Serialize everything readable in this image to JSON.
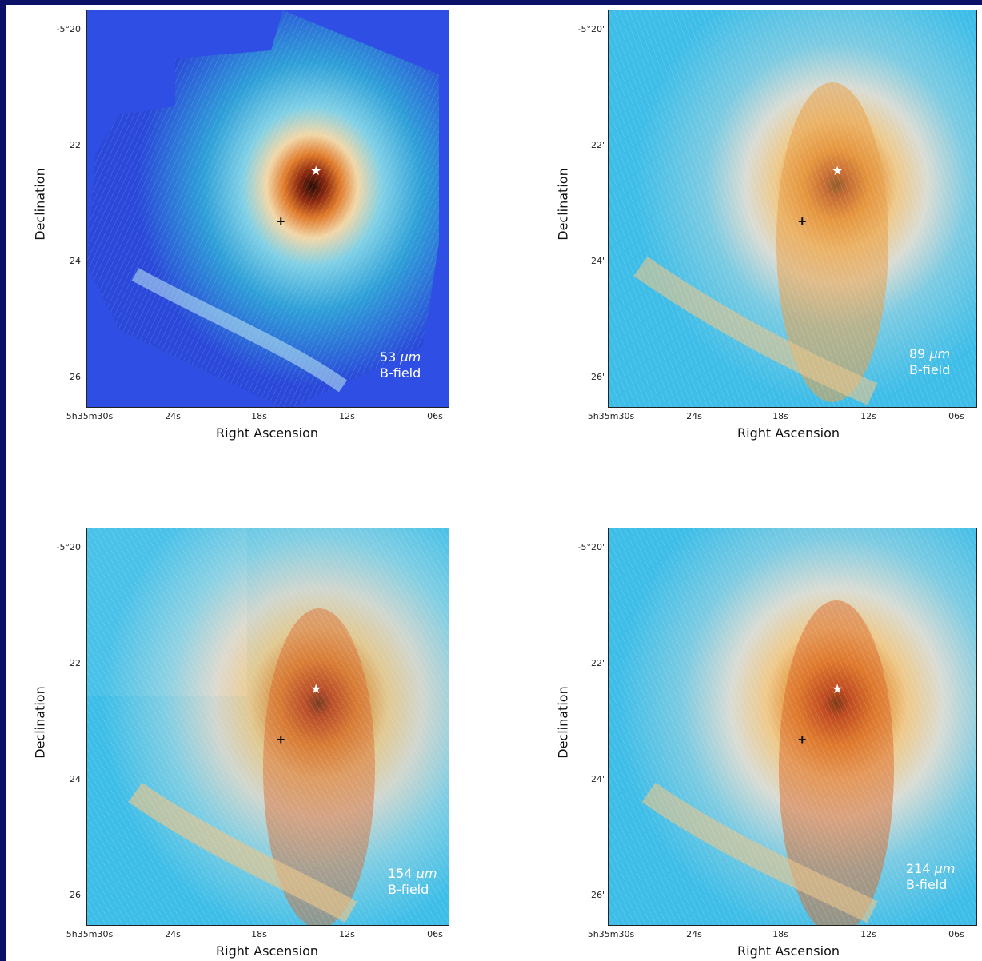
{
  "figure": {
    "panels": [
      {
        "band_value": "53",
        "band_unit": "μm",
        "band_label": "B-field",
        "y_axis_label": "Declination",
        "x_axis_label": "Right Ascension",
        "y_ticks": [
          "-5°20'",
          "22'",
          "24'",
          "26'"
        ],
        "x_ticks": [
          "5h35m30s",
          "24s",
          "18s",
          "12s",
          "06s"
        ],
        "colormap": "blue-cyan-orange"
      },
      {
        "band_value": "89",
        "band_unit": "μm",
        "band_label": "B-field",
        "y_axis_label": "Declination",
        "x_axis_label": "Right Ascension",
        "y_ticks": [
          "-5°20'",
          "22'",
          "24'",
          "26'"
        ],
        "x_ticks": [
          "5h35m30s",
          "24s",
          "18s",
          "12s",
          "06s"
        ],
        "colormap": "cyan-orange"
      },
      {
        "band_value": "154",
        "band_unit": "μm",
        "band_label": "B-field",
        "y_axis_label": "Declination",
        "x_axis_label": "Right Ascension",
        "y_ticks": [
          "-5°20'",
          "22'",
          "24'",
          "26'"
        ],
        "x_ticks": [
          "5h35m30s",
          "24s",
          "18s",
          "12s",
          "06s"
        ],
        "colormap": "cyan-orange"
      },
      {
        "band_value": "214",
        "band_unit": "μm",
        "band_label": "B-field",
        "y_axis_label": "Declination",
        "x_axis_label": "Right Ascension",
        "y_ticks": [
          "-5°20'",
          "22'",
          "24'",
          "26'"
        ],
        "x_ticks": [
          "5h35m30s",
          "24s",
          "18s",
          "12s",
          "06s"
        ],
        "colormap": "cyan-orange"
      }
    ],
    "markers": {
      "star_symbol": "★",
      "cross_symbol": "+"
    },
    "colors": {
      "frame_border": "#0a1166",
      "deep_blue": "#2b4bdc",
      "cyan": "#4cc4e6",
      "light_cyan": "#a9e3f0",
      "cream": "#f1e2c4",
      "orange": "#e39a3a",
      "red_orange": "#c9421a",
      "dark_core": "#3a1408"
    }
  }
}
